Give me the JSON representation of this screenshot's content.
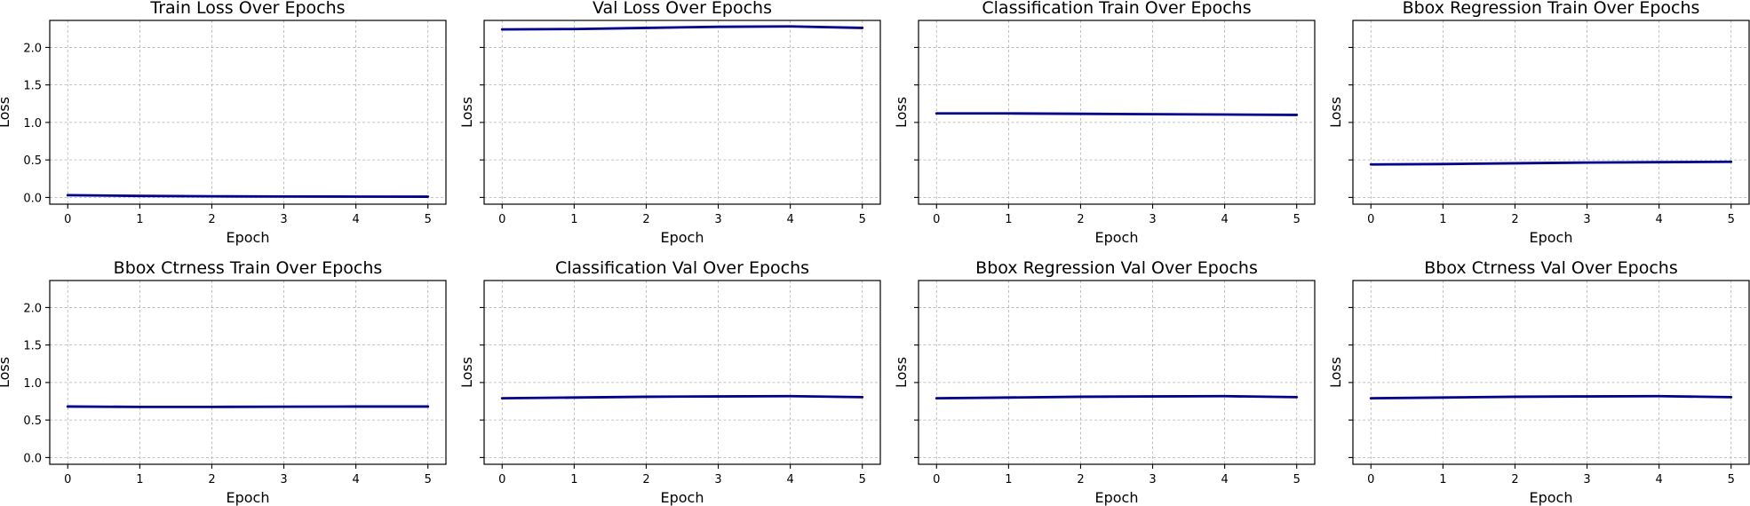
{
  "figure": {
    "line_color": "#00008b",
    "grid": true
  },
  "chart_data": [
    {
      "type": "line",
      "title": "Train Loss Over Epochs",
      "xlabel": "Epoch",
      "ylabel": "Loss",
      "x": [
        0,
        1,
        2,
        3,
        4,
        5
      ],
      "series": [
        {
          "values": [
            0.03,
            0.02,
            0.015,
            0.012,
            0.011,
            0.01
          ]
        }
      ],
      "xlim": [
        -0.25,
        5.25
      ],
      "ylim": [
        -0.09,
        2.36
      ],
      "xticks": [
        "0",
        "1",
        "2",
        "3",
        "4",
        "5"
      ],
      "yticks": [
        0.0,
        0.5,
        1.0,
        1.5,
        2.0
      ],
      "ytick_labels": [
        "0.0",
        "0.5",
        "1.0",
        "1.5",
        "2.0"
      ],
      "show_ytick_labels": true,
      "show_ylabel": true
    },
    {
      "type": "line",
      "title": "Val Loss Over Epochs",
      "xlabel": "Epoch",
      "ylabel": "Loss",
      "x": [
        0,
        1,
        2,
        3,
        4,
        5
      ],
      "series": [
        {
          "values": [
            2.24,
            2.245,
            2.26,
            2.275,
            2.28,
            2.26
          ]
        }
      ],
      "xlim": [
        -0.25,
        5.25
      ],
      "ylim": [
        -0.09,
        2.36
      ],
      "xticks": [
        "0",
        "1",
        "2",
        "3",
        "4",
        "5"
      ],
      "yticks": [
        0.0,
        0.5,
        1.0,
        1.5,
        2.0
      ],
      "ytick_labels": [
        "0.0",
        "0.5",
        "1.0",
        "1.5",
        "2.0"
      ],
      "show_ytick_labels": false,
      "show_ylabel": true
    },
    {
      "type": "line",
      "title": "Classification Train Over Epochs",
      "xlabel": "Epoch",
      "ylabel": "Loss",
      "x": [
        0,
        1,
        2,
        3,
        4,
        5
      ],
      "series": [
        {
          "values": [
            1.12,
            1.12,
            1.115,
            1.11,
            1.105,
            1.1
          ]
        }
      ],
      "xlim": [
        -0.25,
        5.25
      ],
      "ylim": [
        -0.09,
        2.36
      ],
      "xticks": [
        "0",
        "1",
        "2",
        "3",
        "4",
        "5"
      ],
      "yticks": [
        0.0,
        0.5,
        1.0,
        1.5,
        2.0
      ],
      "ytick_labels": [
        "0.0",
        "0.5",
        "1.0",
        "1.5",
        "2.0"
      ],
      "show_ytick_labels": false,
      "show_ylabel": true
    },
    {
      "type": "line",
      "title": "Bbox Regression Train Over Epochs",
      "xlabel": "Epoch",
      "ylabel": "Loss",
      "x": [
        0,
        1,
        2,
        3,
        4,
        5
      ],
      "series": [
        {
          "values": [
            0.44,
            0.445,
            0.455,
            0.465,
            0.47,
            0.475
          ]
        }
      ],
      "xlim": [
        -0.25,
        5.25
      ],
      "ylim": [
        -0.09,
        2.36
      ],
      "xticks": [
        "0",
        "1",
        "2",
        "3",
        "4",
        "5"
      ],
      "yticks": [
        0.0,
        0.5,
        1.0,
        1.5,
        2.0
      ],
      "ytick_labels": [
        "0.0",
        "0.5",
        "1.0",
        "1.5",
        "2.0"
      ],
      "show_ytick_labels": false,
      "show_ylabel": true
    },
    {
      "type": "line",
      "title": "Bbox Ctrness Train Over Epochs",
      "xlabel": "Epoch",
      "ylabel": "Loss",
      "x": [
        0,
        1,
        2,
        3,
        4,
        5
      ],
      "series": [
        {
          "values": [
            0.68,
            0.675,
            0.675,
            0.678,
            0.68,
            0.68
          ]
        }
      ],
      "xlim": [
        -0.25,
        5.25
      ],
      "ylim": [
        -0.09,
        2.36
      ],
      "xticks": [
        "0",
        "1",
        "2",
        "3",
        "4",
        "5"
      ],
      "yticks": [
        0.0,
        0.5,
        1.0,
        1.5,
        2.0
      ],
      "ytick_labels": [
        "0.0",
        "0.5",
        "1.0",
        "1.5",
        "2.0"
      ],
      "show_ytick_labels": true,
      "show_ylabel": true
    },
    {
      "type": "line",
      "title": "Classification Val Over Epochs",
      "xlabel": "Epoch",
      "ylabel": "Loss",
      "x": [
        0,
        1,
        2,
        3,
        4,
        5
      ],
      "series": [
        {
          "values": [
            0.79,
            0.8,
            0.81,
            0.815,
            0.818,
            0.805
          ]
        }
      ],
      "xlim": [
        -0.25,
        5.25
      ],
      "ylim": [
        -0.09,
        2.36
      ],
      "xticks": [
        "0",
        "1",
        "2",
        "3",
        "4",
        "5"
      ],
      "yticks": [
        0.0,
        0.5,
        1.0,
        1.5,
        2.0
      ],
      "ytick_labels": [
        "0.0",
        "0.5",
        "1.0",
        "1.5",
        "2.0"
      ],
      "show_ytick_labels": false,
      "show_ylabel": true
    },
    {
      "type": "line",
      "title": "Bbox Regression Val Over Epochs",
      "xlabel": "Epoch",
      "ylabel": "Loss",
      "x": [
        0,
        1,
        2,
        3,
        4,
        5
      ],
      "series": [
        {
          "values": [
            0.79,
            0.8,
            0.81,
            0.815,
            0.818,
            0.805
          ]
        }
      ],
      "xlim": [
        -0.25,
        5.25
      ],
      "ylim": [
        -0.09,
        2.36
      ],
      "xticks": [
        "0",
        "1",
        "2",
        "3",
        "4",
        "5"
      ],
      "yticks": [
        0.0,
        0.5,
        1.0,
        1.5,
        2.0
      ],
      "ytick_labels": [
        "0.0",
        "0.5",
        "1.0",
        "1.5",
        "2.0"
      ],
      "show_ytick_labels": false,
      "show_ylabel": true
    },
    {
      "type": "line",
      "title": "Bbox Ctrness Val Over Epochs",
      "xlabel": "Epoch",
      "ylabel": "Loss",
      "x": [
        0,
        1,
        2,
        3,
        4,
        5
      ],
      "series": [
        {
          "values": [
            0.79,
            0.8,
            0.81,
            0.815,
            0.818,
            0.805
          ]
        }
      ],
      "xlim": [
        -0.25,
        5.25
      ],
      "ylim": [
        -0.09,
        2.36
      ],
      "xticks": [
        "0",
        "1",
        "2",
        "3",
        "4",
        "5"
      ],
      "yticks": [
        0.0,
        0.5,
        1.0,
        1.5,
        2.0
      ],
      "ytick_labels": [
        "0.0",
        "0.5",
        "1.0",
        "1.5",
        "2.0"
      ],
      "show_ytick_labels": false,
      "show_ylabel": true
    }
  ]
}
